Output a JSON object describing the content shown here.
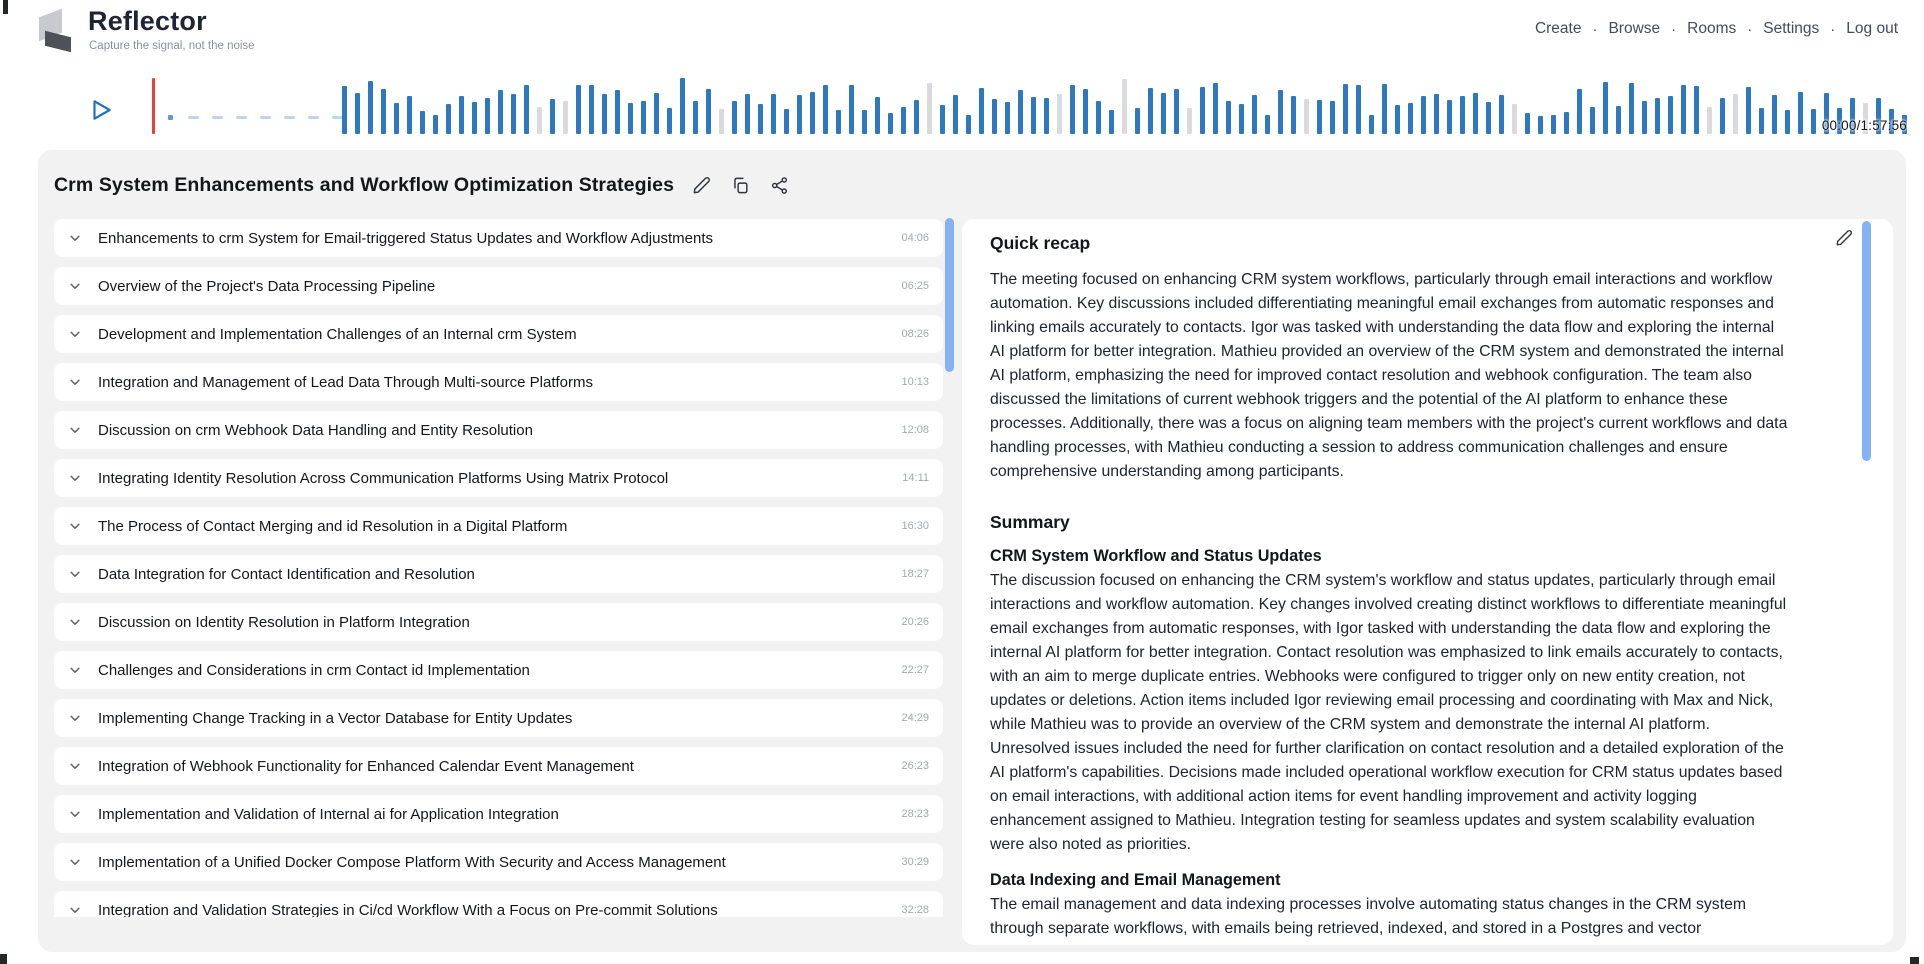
{
  "header": {
    "brand": {
      "name": "Reflector",
      "tagline": "Capture the signal, not the noise"
    },
    "nav": [
      "Create",
      "Browse",
      "Rooms",
      "Settings",
      "Log out"
    ],
    "nav_separator": "·"
  },
  "player": {
    "time_display": "00:00/1:57:56"
  },
  "meeting": {
    "title": "Crm System Enhancements and Workflow Optimization Strategies",
    "topics": [
      {
        "label": "Enhancements to crm System for Email-triggered Status Updates and Workflow Adjustments",
        "time": "04:06"
      },
      {
        "label": "Overview of the Project's Data Processing Pipeline",
        "time": "06:25"
      },
      {
        "label": "Development and Implementation Challenges of an Internal crm System",
        "time": "08:26"
      },
      {
        "label": "Integration and Management of Lead Data Through Multi-source Platforms",
        "time": "10:13"
      },
      {
        "label": "Discussion on crm Webhook Data Handling and Entity Resolution",
        "time": "12:08"
      },
      {
        "label": "Integrating Identity Resolution Across Communication Platforms Using Matrix Protocol",
        "time": "14:11"
      },
      {
        "label": "The Process of Contact Merging and id Resolution in a Digital Platform",
        "time": "16:30"
      },
      {
        "label": "Data Integration for Contact Identification and Resolution",
        "time": "18:27"
      },
      {
        "label": "Discussion on Identity Resolution in Platform Integration",
        "time": "20:26"
      },
      {
        "label": "Challenges and Considerations in crm Contact id Implementation",
        "time": "22:27"
      },
      {
        "label": "Implementing Change Tracking in a Vector Database for Entity Updates",
        "time": "24:29"
      },
      {
        "label": "Integration of Webhook Functionality for Enhanced Calendar Event Management",
        "time": "26:23"
      },
      {
        "label": "Implementation and Validation of Internal ai for Application Integration",
        "time": "28:23"
      },
      {
        "label": "Implementation of a Unified Docker Compose Platform With Security and Access Management",
        "time": "30:29"
      },
      {
        "label": "Integration and Validation Strategies in Ci/cd Workflow With a Focus on Pre-commit Solutions",
        "time": "32:28"
      }
    ],
    "recap": {
      "heading": "Quick recap",
      "text": "The meeting focused on enhancing CRM system workflows, particularly through email interactions and workflow automation. Key discussions included differentiating meaningful email exchanges from automatic responses and linking emails accurately to contacts. Igor was tasked with understanding the data flow and exploring the internal AI platform for better integration. Mathieu provided an overview of the CRM system and demonstrated the internal AI platform, emphasizing the need for improved contact resolution and webhook configuration. The team also discussed the limitations of current webhook triggers and the potential of the AI platform to enhance these processes. Additionally, there was a focus on aligning team members with the project's current workflows and data handling processes, with Mathieu conducting a session to address communication challenges and ensure comprehensive understanding among participants."
    },
    "summary": {
      "heading": "Summary",
      "sections": [
        {
          "heading": "CRM System Workflow and Status Updates",
          "text": "The discussion focused on enhancing the CRM system's workflow and status updates, particularly through email interactions and workflow automation. Key changes involved creating distinct workflows to differentiate meaningful email exchanges from automatic responses, with Igor tasked with understanding the data flow and exploring the internal AI platform for better integration. Contact resolution was emphasized to link emails accurately to contacts, with an aim to merge duplicate entries. Webhooks were configured to trigger only on new entity creation, not updates or deletions. Action items included Igor reviewing email processing and coordinating with Max and Nick, while Mathieu was to provide an overview of the CRM system and demonstrate the internal AI platform. Unresolved issues included the need for further clarification on contact resolution and a detailed exploration of the AI platform's capabilities. Decisions made included operational workflow execution for CRM status updates based on email interactions, with additional action items for event handling improvement and activity logging enhancement assigned to Mathieu. Integration testing for seamless updates and system scalability evaluation were also noted as priorities."
        },
        {
          "heading": "Data Indexing and Email Management",
          "text": "The email management and data indexing processes involve automating status changes in the CRM system through separate workflows, with emails being retrieved, indexed, and stored in a Postgres and vector"
        }
      ]
    }
  },
  "icons": {
    "play": "play-triangle-outline",
    "edit": "pencil-icon",
    "copy": "copy-icon",
    "share": "share-icon",
    "chevron": "chevron-down-icon"
  },
  "colors": {
    "waveform_bar": "#2e77c1",
    "waveform_bar_muted": "#d8dade",
    "playhead": "#e5423a",
    "scroll_thumb": "#85b2f2",
    "card_bg": "#f2f2f3",
    "accent_text": "#14161a",
    "timestamp": "#a3a9b0"
  }
}
